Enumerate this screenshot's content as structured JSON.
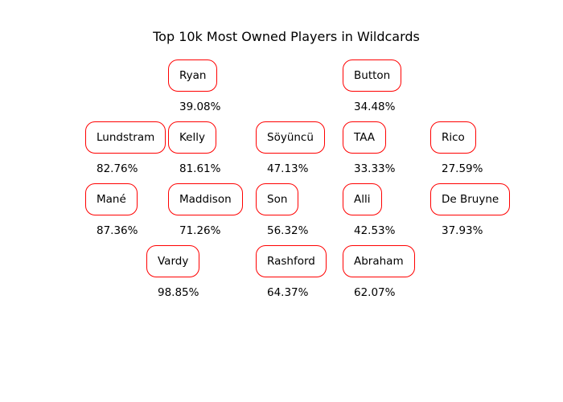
{
  "title": "Top 10k Most Owned Players in Wildcards",
  "colors": {
    "border": "#ff0000",
    "text": "#000000",
    "background": "#ffffff"
  },
  "players": [
    {
      "name": "Ryan",
      "ownership": "39.08%"
    },
    {
      "name": "Button",
      "ownership": "34.48%"
    },
    {
      "name": "Lundstram",
      "ownership": "82.76%"
    },
    {
      "name": "Kelly",
      "ownership": "81.61%"
    },
    {
      "name": "Söyüncü",
      "ownership": "47.13%"
    },
    {
      "name": "TAA",
      "ownership": "33.33%"
    },
    {
      "name": "Rico",
      "ownership": "27.59%"
    },
    {
      "name": "Mané",
      "ownership": "87.36%"
    },
    {
      "name": "Maddison",
      "ownership": "71.26%"
    },
    {
      "name": "Son",
      "ownership": "56.32%"
    },
    {
      "name": "Alli",
      "ownership": "42.53%"
    },
    {
      "name": "De Bruyne",
      "ownership": "37.93%"
    },
    {
      "name": "Vardy",
      "ownership": "98.85%"
    },
    {
      "name": "Rashford",
      "ownership": "64.37%"
    },
    {
      "name": "Abraham",
      "ownership": "62.07%"
    }
  ]
}
